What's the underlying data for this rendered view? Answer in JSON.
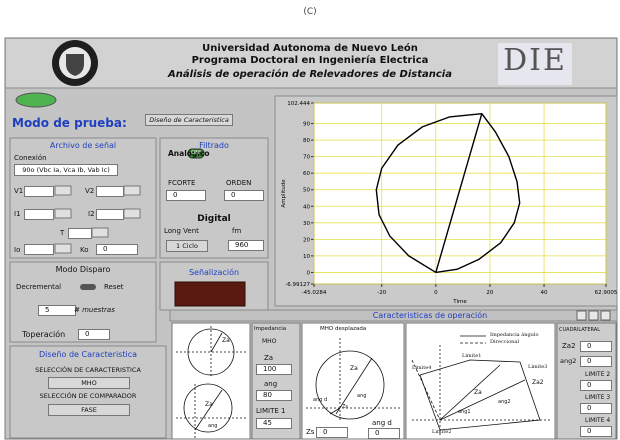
{
  "caption": "(C)",
  "header": {
    "line1": "Universidad Autonoma de Nuevo León",
    "line2": "Programa Doctoral en Ingeniería Electrica",
    "line3": "Análisis de operación de Relevadores de Distancia",
    "logo": "DIE"
  },
  "mode": {
    "label": "Modo de prueba:",
    "value": "Diseño de Caracteristica"
  },
  "archivo": {
    "title": "Archivo de señal",
    "conexion_label": "Conexión",
    "conexion_value": "90o (Vbc Ia, Vca Ib, Vab Ic)",
    "v1": "V1",
    "v2": "V2",
    "i1": "I1",
    "i2": "I2",
    "t": "T",
    "io": "Io",
    "ko": "Ko",
    "ko_value": 0
  },
  "filtrado": {
    "title": "Filtrado",
    "analogico": "Analógico",
    "switch": "OFF",
    "fcorte": "FCORTE",
    "fcorte_value": 0,
    "orden": "ORDEN",
    "orden_value": 0,
    "digital": "Digital",
    "long_vent": "Long Vent",
    "fm": "fm",
    "long_vent_value": "1 Ciclo",
    "fm_value": 960
  },
  "senalizacion": "Señalización",
  "disparo": {
    "title": "Modo Disparo",
    "decremental": "Decremental",
    "reset": "Reset",
    "muestras_value": 5,
    "muestras": "# muestras",
    "toperacion": "Toperación",
    "toperacion_value": 0
  },
  "diseno": {
    "title": "Diseño de Caracteristica",
    "sel_car": "SELECCIÓN DE CARACTERISTICA",
    "car_value": "MHO",
    "sel_comp": "SELECCIÓN DE COMPARADOR",
    "comp_value": "FASE"
  },
  "chart_data": {
    "type": "line",
    "xlabel": "Time",
    "ylabel": "Amplitude",
    "xlim": [
      -45.0284,
      62.9005
    ],
    "ylim": [
      -6.99127,
      102.444
    ],
    "xticks": [
      -45.0284,
      -20,
      0,
      20,
      40,
      62.9005
    ],
    "yticks": [
      -6.99127,
      0,
      10,
      20,
      30,
      40,
      50,
      60,
      70,
      80,
      90,
      102.444
    ],
    "grid": true,
    "grid_color": "#e6e04a",
    "series": [
      {
        "color": "#000000",
        "x": [
          0,
          -10,
          -17,
          -21,
          -22,
          -20,
          -14,
          -5,
          5,
          17,
          22,
          27,
          30,
          31,
          29,
          24,
          16,
          8,
          0
        ],
        "values": [
          0,
          10,
          22,
          35,
          50,
          63,
          77,
          88,
          94,
          96,
          85,
          70,
          55,
          42,
          30,
          18,
          8,
          2,
          0
        ]
      },
      {
        "color": "#000000",
        "x": [
          0,
          17
        ],
        "values": [
          0,
          96
        ]
      }
    ]
  },
  "operation": {
    "title": "Caracteristicas de operación",
    "p1_za_top": "Za",
    "p1_za_bottom": "Za",
    "p1_ang": "ang",
    "p2_title": "Impedancia",
    "p2_type": "MHO",
    "p2_za": "Za",
    "p2_za_value": 100,
    "p2_ang": "ang",
    "p2_ang_value": 80,
    "p2_lim": "LIMITE 1",
    "p2_lim_value": 45,
    "p3_title": "MHO desplazada",
    "p3_za": "Za",
    "p3_ang": "ang",
    "p3_angd": "ang d",
    "p3_zs": "Zs",
    "p3_zs_label": "Zs",
    "p3_zs_value": 0,
    "p3_angd_label": "ang d",
    "p3_angd_value": 0,
    "p4_leg1": "Impedancia ángulo",
    "p4_leg2": "Direccional",
    "p4_l1": "Limite1",
    "p4_l2": "Limite2",
    "p4_l3": "Limite3",
    "p4_l4": "Limite4",
    "p4_za": "Za",
    "p4_za2": "Za2",
    "p4_ang1": "ang1",
    "p4_ang2": "ang2",
    "p5_title": "CUADRILATERAL",
    "p5_za2": "Za2",
    "p5_za2_value": 0,
    "p5_ang2": "ang2",
    "p5_ang2_value": 0,
    "p5_l2": "LIMITE 2",
    "p5_l2_value": 0,
    "p5_l3": "LIMITE 3",
    "p5_l3_value": 0,
    "p5_l4": "LIMITE 4",
    "p5_l4_value": 0
  }
}
